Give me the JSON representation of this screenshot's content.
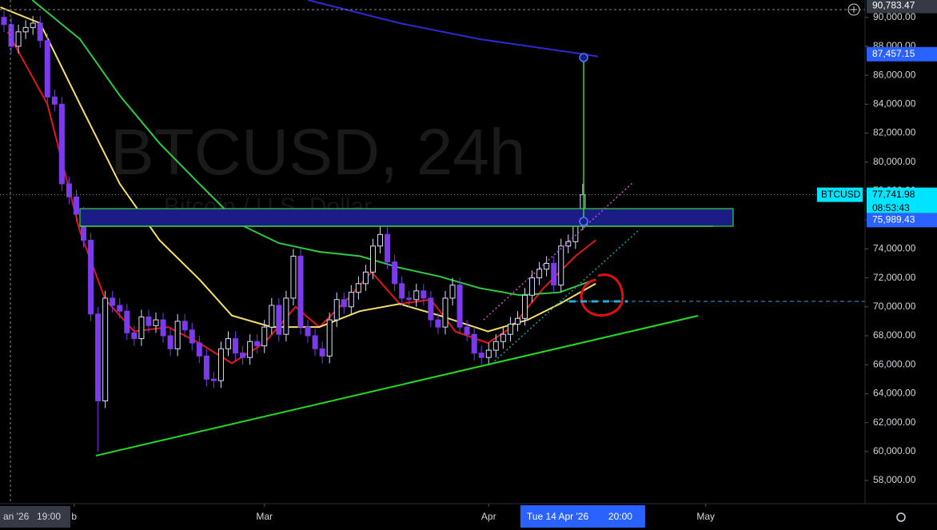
{
  "chart_data": {
    "type": "candlestick",
    "title": "BTCUSD, 24h",
    "subtitle": "Bitcoin / U.S. Dollar",
    "symbol_tag": "BTCUSD",
    "countdown": "08:53:43",
    "up_color": "#d6dcff",
    "down_color": "#7c3aed",
    "open": [
      90000,
      89500,
      88000,
      89000,
      89300,
      89600,
      88400,
      84500,
      84000,
      78500,
      77600,
      76400,
      74600,
      69500,
      63500,
      70600,
      70100,
      69700,
      68200,
      67800,
      69300,
      68700,
      69100,
      68000,
      67100,
      69000,
      68400,
      67500,
      66600,
      65000,
      64900,
      67100,
      67800,
      66800,
      66500,
      67600,
      67300,
      68600,
      70100,
      68100,
      70600,
      73500,
      68600,
      68000,
      67100,
      66600,
      69100,
      70500,
      70000,
      71000,
      71600,
      72400,
      74200,
      75000,
      73100,
      71600,
      70600,
      70500,
      71100,
      70600,
      69100,
      68600,
      70600,
      71500,
      68600,
      68100,
      66800,
      66500,
      67000,
      67600,
      68100,
      68800,
      69200,
      70800,
      72000,
      72600,
      73000,
      71500,
      74200,
      74500,
      75800
    ],
    "high": [
      90500,
      90000,
      89500,
      89800,
      90100,
      90100,
      88900,
      85000,
      84500,
      79000,
      78100,
      76900,
      75100,
      70000,
      71100,
      71100,
      70600,
      70200,
      68700,
      69800,
      69800,
      69600,
      69600,
      68500,
      69500,
      69500,
      68900,
      68000,
      67100,
      65500,
      67600,
      68300,
      68300,
      67300,
      68100,
      68100,
      69100,
      70600,
      70600,
      71100,
      74000,
      74000,
      69100,
      68500,
      67600,
      69600,
      71000,
      71000,
      71500,
      72100,
      72900,
      74700,
      75800,
      75500,
      73600,
      72100,
      71100,
      71600,
      71600,
      71100,
      69600,
      71100,
      72000,
      72000,
      69100,
      68600,
      67300,
      67500,
      68100,
      68600,
      69300,
      69700,
      71300,
      72500,
      73100,
      73500,
      73500,
      74700,
      75000,
      76300,
      78500
    ],
    "low": [
      89000,
      87500,
      87500,
      88500,
      88800,
      87900,
      84000,
      83500,
      78000,
      77100,
      75900,
      74100,
      69000,
      60000,
      63000,
      69600,
      69200,
      67700,
      67300,
      67300,
      68200,
      68200,
      67500,
      66600,
      66600,
      67900,
      67000,
      66100,
      64500,
      64400,
      64400,
      66600,
      66300,
      66000,
      66000,
      66800,
      66800,
      68100,
      67600,
      67600,
      70100,
      68100,
      67500,
      66600,
      66100,
      66100,
      68600,
      69500,
      69500,
      70500,
      71100,
      71900,
      73700,
      72600,
      71100,
      70100,
      70000,
      70000,
      70100,
      68600,
      68100,
      68100,
      70100,
      68100,
      67600,
      66300,
      66000,
      66000,
      66500,
      67100,
      67600,
      68300,
      68700,
      70300,
      71500,
      72100,
      71000,
      71000,
      73700,
      74000,
      75300
    ],
    "close": [
      89500,
      88000,
      89000,
      89300,
      89600,
      88400,
      84500,
      84000,
      78500,
      77600,
      76400,
      74600,
      69500,
      63500,
      70600,
      70100,
      69700,
      68200,
      67800,
      69300,
      68700,
      69100,
      68000,
      67100,
      69000,
      68400,
      67500,
      66600,
      65000,
      64900,
      67100,
      67800,
      66800,
      66500,
      67600,
      67300,
      68600,
      70100,
      68100,
      70600,
      73500,
      68600,
      68000,
      67100,
      66600,
      69100,
      70500,
      70000,
      71000,
      71600,
      72400,
      74200,
      75000,
      73100,
      71600,
      70600,
      70500,
      71100,
      70600,
      69100,
      68600,
      70600,
      71500,
      68600,
      68100,
      66800,
      66500,
      67000,
      67600,
      68100,
      68800,
      69200,
      70800,
      72000,
      72600,
      73000,
      71500,
      74200,
      74500,
      75800,
      77741.98
    ],
    "series": [
      {
        "color": "#e01818",
        "x": [
          0.5,
          6,
          10.5,
          14,
          18,
          22.7,
          27,
          31.5,
          36,
          40.3,
          43.6,
          48,
          50.8,
          54.7,
          59,
          62.4,
          66.9,
          70.2,
          74.6,
          79,
          81.8
        ],
        "values": [
          89000,
          84000,
          75200,
          70500,
          68300,
          68600,
          67500,
          66100,
          67500,
          70000,
          68600,
          70800,
          72400,
          70200,
          70500,
          68300,
          67500,
          68600,
          71300,
          73500,
          74600
        ]
      },
      {
        "color": "#f5e16a",
        "x": [
          -0.5,
          5,
          10.5,
          16,
          21.5,
          27,
          31.5,
          37,
          43.6,
          49.2,
          54.7,
          60.2,
          66.9,
          72.4,
          76.8,
          81.8
        ],
        "values": [
          90700,
          89600,
          84000,
          78500,
          74600,
          71900,
          69400,
          68600,
          68600,
          69700,
          70200,
          69400,
          68300,
          69100,
          70200,
          71600
        ]
      },
      {
        "color": "#2ecc40",
        "x": [
          3.9,
          10.5,
          16,
          21.5,
          27,
          32.6,
          38,
          43.6,
          49.2,
          54.7,
          60.2,
          65.7,
          71.3,
          76.8,
          81.8
        ],
        "values": [
          91200,
          88500,
          84600,
          81300,
          78500,
          75700,
          74400,
          73800,
          73500,
          72700,
          72100,
          71300,
          70800,
          71000,
          71900
        ]
      },
      {
        "color": "#2b2bd6",
        "x": [
          42,
          54.7,
          65.7,
          80.1,
          82.1
        ],
        "values": [
          91200,
          89600,
          88500,
          87457.15,
          87300
        ]
      }
    ],
    "xlim": [
      -0.55,
      118.8
    ],
    "ylim": [
      56400,
      91200
    ],
    "xticks": [
      {
        "value": 9.7,
        "label": "b"
      },
      {
        "value": 36,
        "label": "Mar"
      },
      {
        "value": 67,
        "label": "Apr"
      },
      {
        "value": 97,
        "label": "May"
      }
    ],
    "yticks": [
      {
        "value": 58000,
        "label": "58,000.00"
      },
      {
        "value": 60000,
        "label": "60,000.00"
      },
      {
        "value": 62000,
        "label": "62,000.00"
      },
      {
        "value": 64000,
        "label": "64,000.00"
      },
      {
        "value": 66000,
        "label": "66,000.00"
      },
      {
        "value": 68000,
        "label": "68,000.00"
      },
      {
        "value": 70000,
        "label": "70,000.00"
      },
      {
        "value": 72000,
        "label": "72,000.00"
      },
      {
        "value": 74000,
        "label": "74,000.00"
      },
      {
        "value": 76000,
        "label": "76,000.00"
      },
      {
        "value": 78000,
        "label": "78,000.00"
      },
      {
        "value": 80000,
        "label": "80,000.00"
      },
      {
        "value": 82000,
        "label": "82,000.00"
      },
      {
        "value": 84000,
        "label": "84,000.00"
      },
      {
        "value": 86000,
        "label": "86,000.00"
      },
      {
        "value": 88000,
        "label": "88,000.00"
      },
      {
        "value": 90000,
        "label": "90,000.00"
      }
    ],
    "price_labels": [
      {
        "value": 90783.47,
        "label": "90,783.47",
        "bg": "#363a45",
        "fg": "#ffffff"
      },
      {
        "value": 87457.15,
        "label": "87,457.15",
        "bg": "#2962ff",
        "fg": "#ffffff"
      },
      {
        "value": 77741.98,
        "label": "77,741.98",
        "bg": "#00e5ff",
        "fg": "#000000"
      },
      {
        "value": 75989.43,
        "label": "75,989.43",
        "bg": "#2962ff",
        "fg": "#ffffff"
      }
    ],
    "crosshair_date": "an '26",
    "crosshair_time": "19:00",
    "current_date": {
      "value": 80,
      "label": "Tue 14 Apr '26",
      "time": "20:00"
    }
  }
}
